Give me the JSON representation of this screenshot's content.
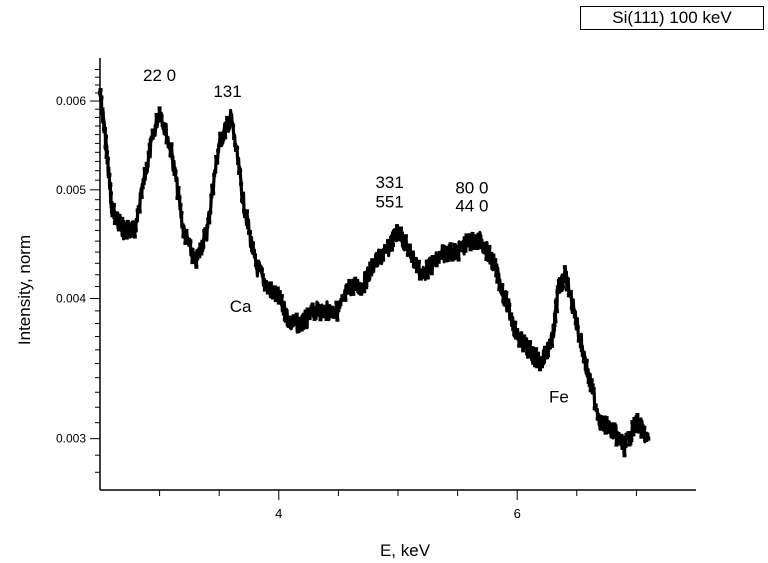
{
  "chart_data": {
    "type": "line",
    "legend": "Si(111) 100 keV",
    "xlabel": "E, keV",
    "ylabel": "Intensity, norm",
    "xlim": [
      2.5,
      7.5
    ],
    "ylim": [
      0.0027,
      0.0065
    ],
    "x_ticks": [
      {
        "value": 4,
        "label": "4"
      },
      {
        "value": 6,
        "label": "6"
      }
    ],
    "y_ticks": [
      {
        "value": 0.003,
        "label": "0.003"
      },
      {
        "value": 0.004,
        "label": "0.004"
      },
      {
        "value": 0.005,
        "label": "0.005"
      },
      {
        "value": 0.006,
        "label": "0.006"
      }
    ],
    "series": [
      {
        "x": [
          2.5,
          2.55,
          2.6,
          2.65,
          2.7,
          2.8,
          2.9,
          3.0,
          3.1,
          3.2,
          3.3,
          3.4,
          3.5,
          3.6,
          3.7,
          3.8,
          3.9,
          4.0,
          4.1,
          4.2,
          4.3,
          4.4,
          4.5,
          4.6,
          4.7,
          4.8,
          4.9,
          5.0,
          5.1,
          5.2,
          5.3,
          5.4,
          5.5,
          5.6,
          5.7,
          5.8,
          5.9,
          6.0,
          6.1,
          6.2,
          6.3,
          6.35,
          6.4,
          6.5,
          6.6,
          6.7,
          6.8,
          6.9,
          7.0,
          7.1
        ],
        "y": [
          0.0061,
          0.0055,
          0.0048,
          0.0047,
          0.0046,
          0.0046,
          0.0053,
          0.0059,
          0.0054,
          0.0046,
          0.0043,
          0.0046,
          0.0055,
          0.0058,
          0.0049,
          0.0043,
          0.0041,
          0.004,
          0.0038,
          0.0038,
          0.0039,
          0.0039,
          0.0039,
          0.0041,
          0.0041,
          0.0043,
          0.0044,
          0.0046,
          0.0044,
          0.0042,
          0.0043,
          0.0044,
          0.0044,
          0.0045,
          0.0045,
          0.0043,
          0.004,
          0.0037,
          0.0036,
          0.0035,
          0.0037,
          0.0041,
          0.0042,
          0.0038,
          0.0034,
          0.0031,
          0.00305,
          0.00295,
          0.0031,
          0.003
        ]
      }
    ],
    "annotations": [
      {
        "text": "22 0",
        "x": 3.0,
        "y": 0.00625
      },
      {
        "text": "131",
        "x": 3.57,
        "y": 0.00605
      },
      {
        "text": "331",
        "x": 4.93,
        "y": 0.00502
      },
      {
        "text": "551",
        "x": 4.93,
        "y": 0.00482
      },
      {
        "text": "80 0",
        "x": 5.62,
        "y": 0.00496
      },
      {
        "text": "44 0",
        "x": 5.62,
        "y": 0.00478
      },
      {
        "text": "Ca",
        "x": 3.68,
        "y": 0.00389
      },
      {
        "text": "Fe",
        "x": 6.35,
        "y": 0.00323
      }
    ],
    "grid": false,
    "legend_position": "top-right"
  }
}
